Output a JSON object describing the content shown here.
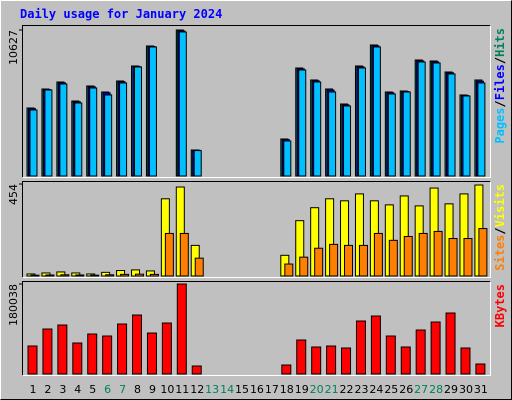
{
  "chart_data": [
    {
      "type": "bar",
      "title": "Daily usage for January 2024",
      "ylim": [
        0,
        10627
      ],
      "yticks": [
        10627
      ],
      "legend_separator": "/",
      "series": [
        {
          "name": "Hits",
          "color": "#00805c",
          "values": [
            4950,
            6333,
            6843,
            5460,
            6552,
            6115,
            6916,
            8008,
            9464,
            0,
            10627,
            1893,
            0,
            0,
            0,
            0,
            0,
            2694,
            7862,
            6989,
            6334,
            5242,
            8008,
            9537,
            6115,
            6188,
            8445,
            8372,
            7571,
            5897,
            6989
          ]
        },
        {
          "name": "Files",
          "color": "#0000ff",
          "values": [
            4900,
            6290,
            6790,
            5400,
            6500,
            6050,
            6860,
            7980,
            9430,
            0,
            10560,
            1880,
            0,
            0,
            0,
            0,
            0,
            2650,
            7800,
            6930,
            6250,
            5180,
            7950,
            9480,
            6060,
            6150,
            8380,
            8310,
            7510,
            5860,
            6900
          ]
        },
        {
          "name": "Pages",
          "color": "#00c0ff",
          "values": [
            4805,
            6261,
            6698,
            5314,
            6406,
            5897,
            6770,
            7935,
            9391,
            0,
            10483,
            1850,
            0,
            0,
            0,
            0,
            0,
            2548,
            7717,
            6843,
            6115,
            5096,
            7862,
            9391,
            5970,
            6115,
            8299,
            8226,
            7426,
            5824,
            6770
          ]
        }
      ]
    },
    {
      "type": "bar",
      "ylim": [
        0,
        454
      ],
      "yticks": [
        454
      ],
      "legend_separator": "/",
      "series": [
        {
          "name": "Visits",
          "color": "#ffff00",
          "values": [
            10,
            15,
            20,
            15,
            10,
            18,
            27,
            30,
            25,
            381,
            439,
            151,
            0,
            0,
            0,
            0,
            0,
            102,
            273,
            337,
            381,
            371,
            405,
            371,
            351,
            395,
            346,
            434,
            356,
            405,
            449
          ]
        },
        {
          "name": "Sites",
          "color": "#ff8000",
          "values": [
            4,
            5,
            6,
            5,
            4,
            6,
            8,
            9,
            8,
            210,
            210,
            88,
            0,
            0,
            0,
            0,
            0,
            59,
            93,
            137,
            156,
            151,
            151,
            210,
            176,
            195,
            210,
            220,
            185,
            185,
            234
          ]
        }
      ]
    },
    {
      "type": "bar",
      "ylim": [
        0,
        180038
      ],
      "yticks": [
        180038
      ],
      "categories": [
        "1",
        "2",
        "3",
        "4",
        "5",
        "6",
        "7",
        "8",
        "9",
        "10",
        "11",
        "12",
        "13",
        "14",
        "15",
        "16",
        "17",
        "18",
        "19",
        "20",
        "21",
        "22",
        "23",
        "24",
        "25",
        "26",
        "27",
        "28",
        "29",
        "30",
        "31"
      ],
      "category_colors": [
        "#000000",
        "#000000",
        "#000000",
        "#000000",
        "#000000",
        "#00805c",
        "#00805c",
        "#000000",
        "#000000",
        "#000000",
        "#000000",
        "#000000",
        "#00805c",
        "#00805c",
        "#000000",
        "#000000",
        "#000000",
        "#000000",
        "#000000",
        "#00805c",
        "#00805c",
        "#000000",
        "#000000",
        "#000000",
        "#000000",
        "#000000",
        "#00805c",
        "#00805c",
        "#000000",
        "#000000",
        "#000000"
      ],
      "series": [
        {
          "name": "KBytes",
          "color": "#ff0000",
          "values": [
            56000,
            90000,
            98000,
            62000,
            80000,
            76000,
            100000,
            118000,
            82000,
            102000,
            180038,
            16000,
            0,
            0,
            0,
            0,
            0,
            18000,
            68000,
            54000,
            56000,
            52000,
            106000,
            116000,
            76000,
            54000,
            88000,
            104000,
            122000,
            52000,
            20000
          ]
        }
      ]
    }
  ]
}
